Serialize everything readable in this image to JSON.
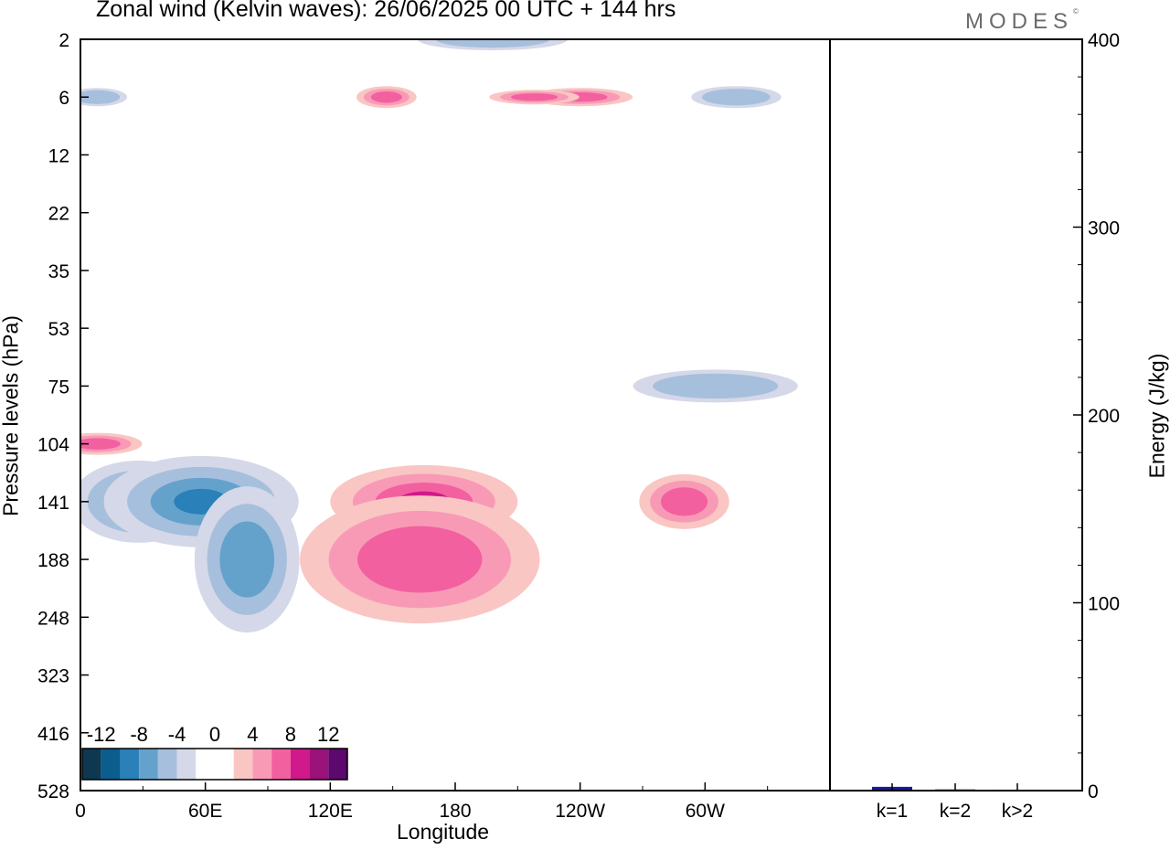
{
  "title": "Zonal wind (Kelvin waves):  26/06/2025  00 UTC  + 144 hrs",
  "brand": "MODES",
  "brand_mark": "©",
  "chart_data": [
    {
      "type": "heatmap",
      "title": "Zonal wind (Kelvin waves):  26/06/2025  00 UTC  + 144 hrs",
      "xlabel": "Longitude",
      "ylabel": "Pressure levels (hPa)",
      "x_ticks": [
        "0",
        "60E",
        "120E",
        "180",
        "120W",
        "60W"
      ],
      "x_tick_values": [
        0,
        60,
        120,
        180,
        240,
        300
      ],
      "xlim": [
        0,
        360
      ],
      "y_ticks": [
        "2",
        "6",
        "12",
        "22",
        "35",
        "53",
        "75",
        "104",
        "141",
        "188",
        "248",
        "323",
        "416",
        "528"
      ],
      "y_order": "top-to-bottom",
      "colorbar": {
        "labels": [
          "-12",
          "-8",
          "-4",
          "0",
          "4",
          "8",
          "12"
        ],
        "colors": [
          "#0e3850",
          "#0b5d8e",
          "#2a80b8",
          "#64a2cc",
          "#a6bfdc",
          "#d5d8e8",
          "#ffffff",
          "#ffffff",
          "#f9c6c3",
          "#f89ab6",
          "#f2609f",
          "#d0198a",
          "#9b127a",
          "#5c086c"
        ]
      },
      "blobs": [
        {
          "sign": "negative",
          "level": 2,
          "lon": 28,
          "p": "141",
          "rx": 18,
          "ry": 45
        },
        {
          "sign": "negative",
          "level": 3,
          "lon": 58,
          "p": "141",
          "rx": 26,
          "ry": 50
        },
        {
          "sign": "negative",
          "level": 2,
          "lon": 80,
          "p": "188",
          "rx": 14,
          "ry": 80
        },
        {
          "sign": "negative",
          "level": 1,
          "lon": 305,
          "p": "75",
          "rx": 22,
          "ry": 18
        },
        {
          "sign": "negative",
          "level": 1,
          "lon": 315,
          "p": "6",
          "rx": 12,
          "ry": 12
        },
        {
          "sign": "negative",
          "level": 1,
          "lon": 8,
          "p": "6",
          "rx": 8,
          "ry": 10
        },
        {
          "sign": "negative",
          "level": 1,
          "lon": 198,
          "p": "2",
          "rx": 20,
          "ry": 12
        },
        {
          "sign": "positive",
          "level": 3,
          "lon": 165,
          "p": "141",
          "rx": 25,
          "ry": 40
        },
        {
          "sign": "positive",
          "level": 2,
          "lon": 163,
          "p": "188",
          "rx": 32,
          "ry": 70
        },
        {
          "sign": "positive",
          "level": 2,
          "lon": 290,
          "p": "141",
          "rx": 12,
          "ry": 30
        },
        {
          "sign": "positive",
          "level": 2,
          "lon": 8,
          "p": "104",
          "rx": 12,
          "ry": 12
        },
        {
          "sign": "positive",
          "level": 2,
          "lon": 240,
          "p": "6",
          "rx": 14,
          "ry": 10
        },
        {
          "sign": "positive",
          "level": 2,
          "lon": 218,
          "p": "6",
          "rx": 12,
          "ry": 8
        },
        {
          "sign": "positive",
          "level": 2,
          "lon": 147,
          "p": "6",
          "rx": 8,
          "ry": 12
        }
      ]
    },
    {
      "type": "bar",
      "categories": [
        "k=1",
        "k=2",
        "k>2"
      ],
      "values": [
        2.0,
        0.7,
        0.5
      ],
      "colors": [
        "#1a1a9a",
        "#6a6a9a",
        "#6a6a9a"
      ],
      "ylabel": "Energy (J/kg)",
      "ylim": [
        0,
        400
      ],
      "y_ticks": [
        0,
        100,
        200,
        300,
        400
      ]
    }
  ]
}
